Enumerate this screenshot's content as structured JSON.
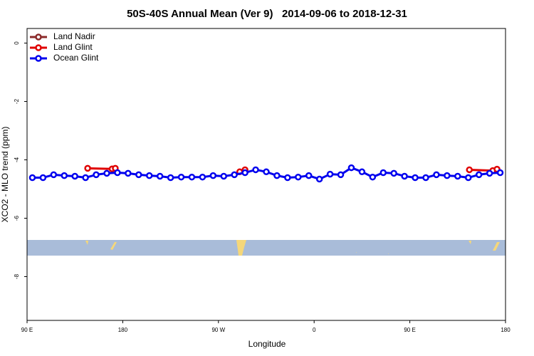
{
  "chart_data": {
    "type": "line",
    "title": "50S-40S Annual Mean (Ver 9)   2014-09-06 to 2018-12-31",
    "x_label": "Longitude",
    "y_label": "XCO2 - MLO trend (ppm)",
    "xlim": [
      90,
      540
    ],
    "ylim": [
      -9.5,
      0.5
    ],
    "xticks": [
      {
        "value": 90,
        "label": "90 E"
      },
      {
        "value": 180,
        "label": "180"
      },
      {
        "value": 270,
        "label": "90 W"
      },
      {
        "value": 360,
        "label": "0"
      },
      {
        "value": 450,
        "label": "90 E"
      },
      {
        "value": 540,
        "label": "180"
      }
    ],
    "yticks": [
      0,
      -2,
      -4,
      -6,
      -8
    ],
    "legend": "top-left",
    "series": [
      {
        "name": "Land Nadir",
        "color": "#8b2a2a",
        "x": [],
        "values": []
      },
      {
        "name": "Land Glint",
        "color": "#e00000",
        "x": [
          147,
          170,
          173,
          null,
          290,
          295,
          null,
          506,
          528,
          532
        ],
        "values": [
          -4.29,
          -4.31,
          -4.29,
          null,
          -4.41,
          -4.34,
          null,
          -4.34,
          -4.37,
          -4.32
        ]
      },
      {
        "name": "Ocean Glint",
        "color": "#0000ee",
        "x": [
          95,
          105,
          115,
          125,
          135,
          145,
          155,
          165,
          175,
          185,
          195,
          205,
          215,
          225,
          235,
          245,
          255,
          265,
          275,
          285,
          295,
          305,
          315,
          325,
          335,
          345,
          355,
          365,
          375,
          385,
          395,
          405,
          415,
          425,
          435,
          445,
          455,
          465,
          475,
          485,
          495,
          505,
          515,
          525,
          535
        ],
        "values": [
          -4.61,
          -4.61,
          -4.51,
          -4.54,
          -4.56,
          -4.61,
          -4.51,
          -4.46,
          -4.44,
          -4.46,
          -4.51,
          -4.54,
          -4.56,
          -4.61,
          -4.59,
          -4.59,
          -4.59,
          -4.54,
          -4.56,
          -4.51,
          -4.44,
          -4.34,
          -4.41,
          -4.54,
          -4.61,
          -4.59,
          -4.54,
          -4.66,
          -4.49,
          -4.51,
          -4.27,
          -4.41,
          -4.59,
          -4.44,
          -4.46,
          -4.56,
          -4.61,
          -4.61,
          -4.51,
          -4.54,
          -4.56,
          -4.61,
          -4.51,
          -4.46,
          -4.44
        ]
      }
    ]
  }
}
